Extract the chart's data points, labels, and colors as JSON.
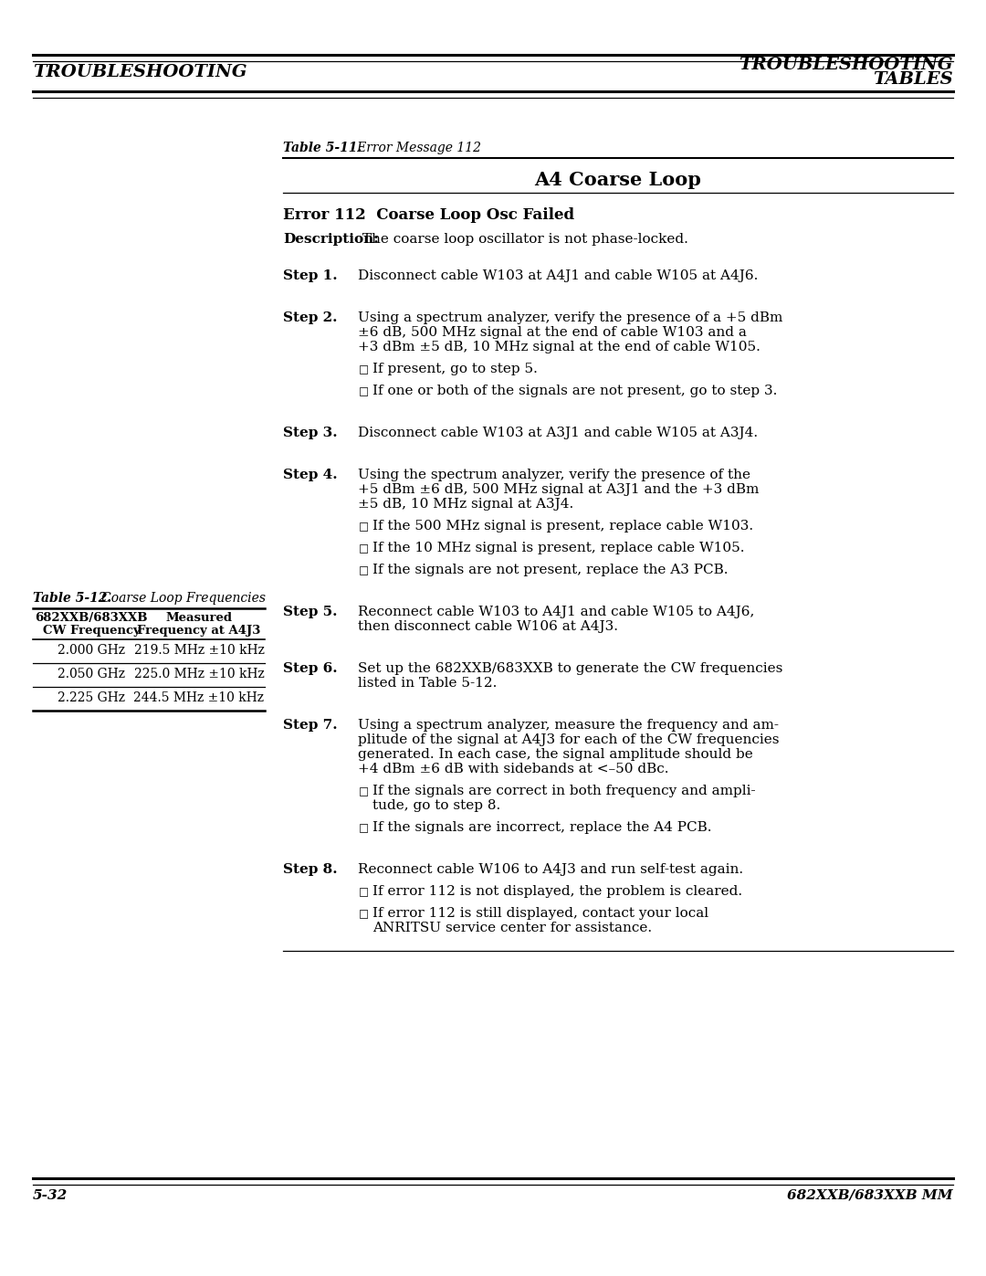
{
  "bg_color": "#ffffff",
  "header_left": "TROUBLESHOOTING",
  "header_right_line1": "TROUBLESHOOTING",
  "header_right_line2": "TABLES",
  "footer_left": "5-32",
  "footer_right": "682XXB/683XXB MM",
  "table_caption_bold": "Table 5-11.",
  "table_caption_italic": "   Error Message 112",
  "section_title": "A4 Coarse Loop",
  "error_title": "Error 112  Coarse Loop Osc Failed",
  "description_bold": "Description:",
  "description_text": " The coarse loop oscillator is not phase-locked.",
  "steps": [
    {
      "label": "Step 1.",
      "text": "Disconnect cable W103 at A4J1 and cable W105 at A4J6.",
      "bullets": []
    },
    {
      "label": "Step 2.",
      "text": "Using a spectrum analyzer, verify the presence of a +5 dBm\n±6 dB, 500 MHz signal at the end of cable W103 and a\n+3 dBm ±5 dB, 10 MHz signal at the end of cable W105.",
      "bullets": [
        "If present, go to step 5.",
        "If one or both of the signals are not present, go to step 3."
      ]
    },
    {
      "label": "Step 3.",
      "text": "Disconnect cable W103 at A3J1 and cable W105 at A3J4.",
      "bullets": []
    },
    {
      "label": "Step 4.",
      "text": "Using the spectrum analyzer, verify the presence of the\n+5 dBm ±6 dB, 500 MHz signal at A3J1 and the +3 dBm\n±5 dB, 10 MHz signal at A3J4.",
      "bullets": [
        "If the 500 MHz signal is present, replace cable W103.",
        "If the 10 MHz signal is present, replace cable W105.",
        "If the signals are not present, replace the A3 PCB."
      ]
    },
    {
      "label": "Step 5.",
      "text": "Reconnect cable W103 to A4J1 and cable W105 to A4J6,\nthen disconnect cable W106 at A4J3.",
      "bullets": []
    },
    {
      "label": "Step 6.",
      "text": "Set up the 682XXB/683XXB to generate the CW frequencies\nlisted in Table 5-12.",
      "bullets": []
    },
    {
      "label": "Step 7.",
      "text": "Using a spectrum analyzer, measure the frequency and am-\nplitude of the signal at A4J3 for each of the CW frequencies\ngenerated. In each case, the signal amplitude should be\n+4 dBm ±6 dB with sidebands at <–50 dBc.",
      "bullets": [
        "If the signals are correct in both frequency and ampli-\ntude, go to step 8.",
        "If the signals are incorrect, replace the A4 PCB."
      ]
    },
    {
      "label": "Step 8.",
      "text": "Reconnect cable W106 to A4J3 and run self-test again.",
      "bullets": [
        "If error 112 is not displayed, the problem is cleared.",
        "If error 112 is still displayed, contact your local\nANRITSU service center for assistance."
      ]
    }
  ],
  "table12_caption_bold": "Table 5-12.",
  "table12_caption_italic": "   Coarse Loop Frequencies",
  "table12_col1_header_line1": "682XXB/683XXB",
  "table12_col1_header_line2": "CW Frequency",
  "table12_col2_header_line1": "Measured",
  "table12_col2_header_line2": "Frequency at A4J3",
  "table12_rows": [
    [
      "2.000 GHz",
      "219.5 MHz ±10 kHz"
    ],
    [
      "2.050 GHz",
      "225.0 MHz ±10 kHz"
    ],
    [
      "2.225 GHz",
      "244.5 MHz ±10 kHz"
    ]
  ]
}
